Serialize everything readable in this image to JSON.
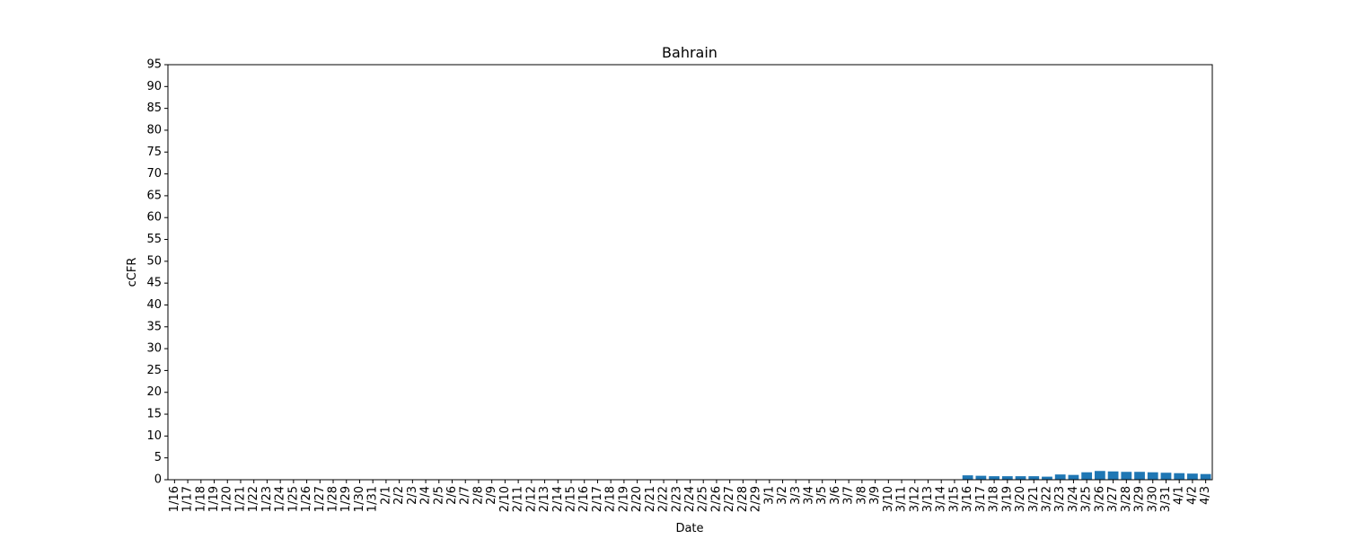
{
  "chart_data": {
    "type": "bar",
    "title": "Bahrain",
    "xlabel": "Date",
    "ylabel": "cCFR",
    "ylim": [
      0,
      95
    ],
    "yticks": [
      0,
      5,
      10,
      15,
      20,
      25,
      30,
      35,
      40,
      45,
      50,
      55,
      60,
      65,
      70,
      75,
      80,
      85,
      90,
      95
    ],
    "grid": false,
    "bar_color": "#1f77b4",
    "categories": [
      "1/16",
      "1/17",
      "1/18",
      "1/19",
      "1/20",
      "1/21",
      "1/22",
      "1/23",
      "1/24",
      "1/25",
      "1/26",
      "1/27",
      "1/28",
      "1/29",
      "1/30",
      "1/31",
      "2/1",
      "2/2",
      "2/3",
      "2/4",
      "2/5",
      "2/6",
      "2/7",
      "2/8",
      "2/9",
      "2/10",
      "2/11",
      "2/12",
      "2/13",
      "2/14",
      "2/15",
      "2/16",
      "2/17",
      "2/18",
      "2/19",
      "2/20",
      "2/21",
      "2/22",
      "2/23",
      "2/24",
      "2/25",
      "2/26",
      "2/27",
      "2/28",
      "2/29",
      "3/1",
      "3/2",
      "3/3",
      "3/4",
      "3/5",
      "3/6",
      "3/7",
      "3/8",
      "3/9",
      "3/10",
      "3/11",
      "3/12",
      "3/13",
      "3/14",
      "3/15",
      "3/16",
      "3/17",
      "3/18",
      "3/19",
      "3/20",
      "3/21",
      "3/22",
      "3/23",
      "3/24",
      "3/25",
      "3/26",
      "3/27",
      "3/28",
      "3/29",
      "3/30",
      "3/31",
      "4/1",
      "4/2",
      "4/3"
    ],
    "values": [
      0,
      0,
      0,
      0,
      0,
      0,
      0,
      0,
      0,
      0,
      0,
      0,
      0,
      0,
      0,
      0,
      0,
      0,
      0,
      0,
      0,
      0,
      0,
      0,
      0,
      0,
      0,
      0,
      0,
      0,
      0,
      0,
      0,
      0,
      0,
      0,
      0,
      0,
      0,
      0,
      0,
      0,
      0,
      0,
      0,
      0,
      0,
      0,
      0,
      0,
      0,
      0,
      0,
      0,
      0,
      0,
      0,
      0,
      0,
      0,
      1.0,
      0.9,
      0.8,
      0.8,
      0.8,
      0.8,
      0.7,
      1.2,
      1.1,
      1.7,
      2.0,
      1.9,
      1.8,
      1.8,
      1.7,
      1.6,
      1.5,
      1.4,
      1.3
    ]
  }
}
